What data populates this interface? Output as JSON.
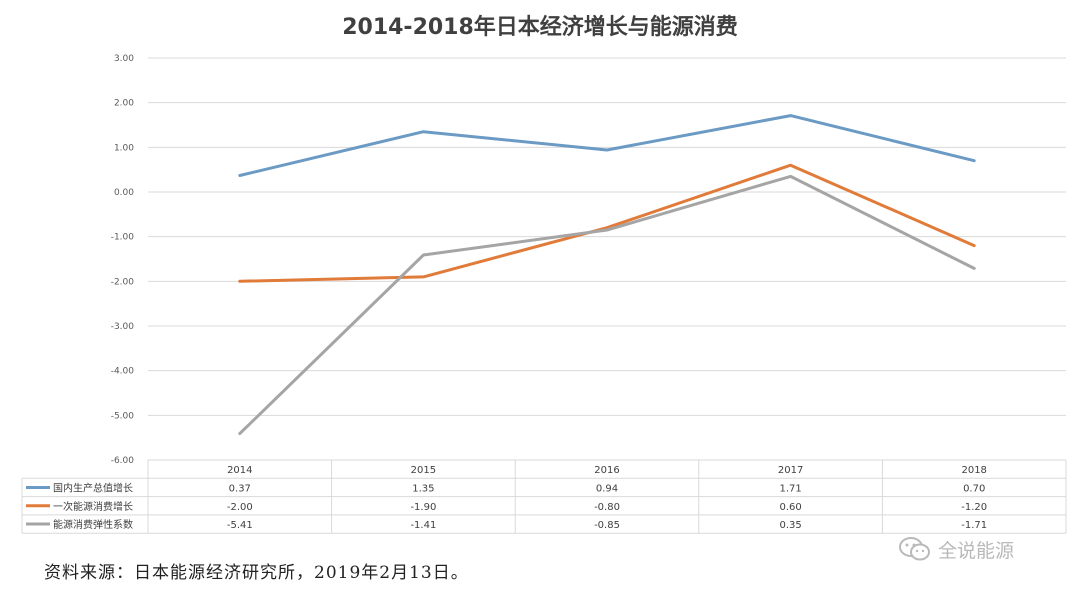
{
  "chart_data": {
    "type": "line",
    "title": "2014-2018年日本经济增长与能源消费",
    "categories": [
      "2014",
      "2015",
      "2016",
      "2017",
      "2018"
    ],
    "ylim": [
      -6,
      3
    ],
    "yticks": [
      "3.00",
      "2.00",
      "1.00",
      "0.00",
      "-1.00",
      "-2.00",
      "-3.00",
      "-4.00",
      "-5.00",
      "-6.00"
    ],
    "grid": true,
    "legend": "data-table-below",
    "series": [
      {
        "name": "国内生产总值增长",
        "color": "#6b9ac4",
        "values": [
          0.37,
          1.35,
          0.94,
          1.71,
          0.7
        ],
        "labels": [
          "0.37",
          "1.35",
          "0.94",
          "1.71",
          "0.70"
        ]
      },
      {
        "name": "一次能源消费增长",
        "color": "#e07b39",
        "values": [
          -2.0,
          -1.9,
          -0.8,
          0.6,
          -1.2
        ],
        "labels": [
          "-2.00",
          "-1.90",
          "-0.80",
          "0.60",
          "-1.20"
        ]
      },
      {
        "name": "能源消费弹性系数",
        "color": "#a5a5a5",
        "values": [
          -5.41,
          -1.41,
          -0.85,
          0.35,
          -1.71
        ],
        "labels": [
          "-5.41",
          "-1.41",
          "-0.85",
          "0.35",
          "-1.71"
        ]
      }
    ]
  },
  "source": "资料来源：日本能源经济研究所，2019年2月13日。",
  "watermark": {
    "text": "全说能源",
    "icon": "wechat-icon"
  }
}
